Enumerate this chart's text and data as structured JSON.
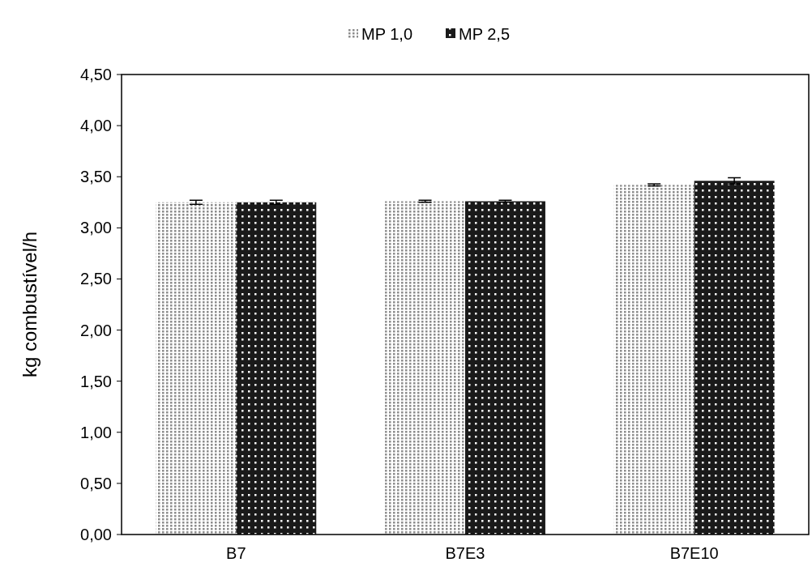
{
  "chart_data": {
    "type": "bar",
    "ylabel": "kg combustível/h",
    "categories": [
      "B7",
      "B7E3",
      "B7E10"
    ],
    "series": [
      {
        "name": "MP 1,0",
        "color": "#8c8c8c",
        "values": [
          3.25,
          3.26,
          3.42
        ],
        "errors": [
          0.02,
          0.01,
          0.01
        ]
      },
      {
        "name": "MP 2,5",
        "color": "#1a1a1a",
        "values": [
          3.25,
          3.26,
          3.46
        ],
        "errors": [
          0.02,
          0.01,
          0.03
        ]
      }
    ],
    "ylim": [
      0,
      4.5
    ],
    "yticks": [
      {
        "value": 0,
        "label": "0,00"
      },
      {
        "value": 0.5,
        "label": "0,50"
      },
      {
        "value": 1,
        "label": "1,00"
      },
      {
        "value": 1.5,
        "label": "1,50"
      },
      {
        "value": 2,
        "label": "2,00"
      },
      {
        "value": 2.5,
        "label": "2,50"
      },
      {
        "value": 3,
        "label": "3,00"
      },
      {
        "value": 3.5,
        "label": "3,50"
      },
      {
        "value": 4,
        "label": "4,00"
      },
      {
        "value": 4.5,
        "label": "4,50"
      }
    ],
    "grid": false,
    "legend": "top"
  }
}
